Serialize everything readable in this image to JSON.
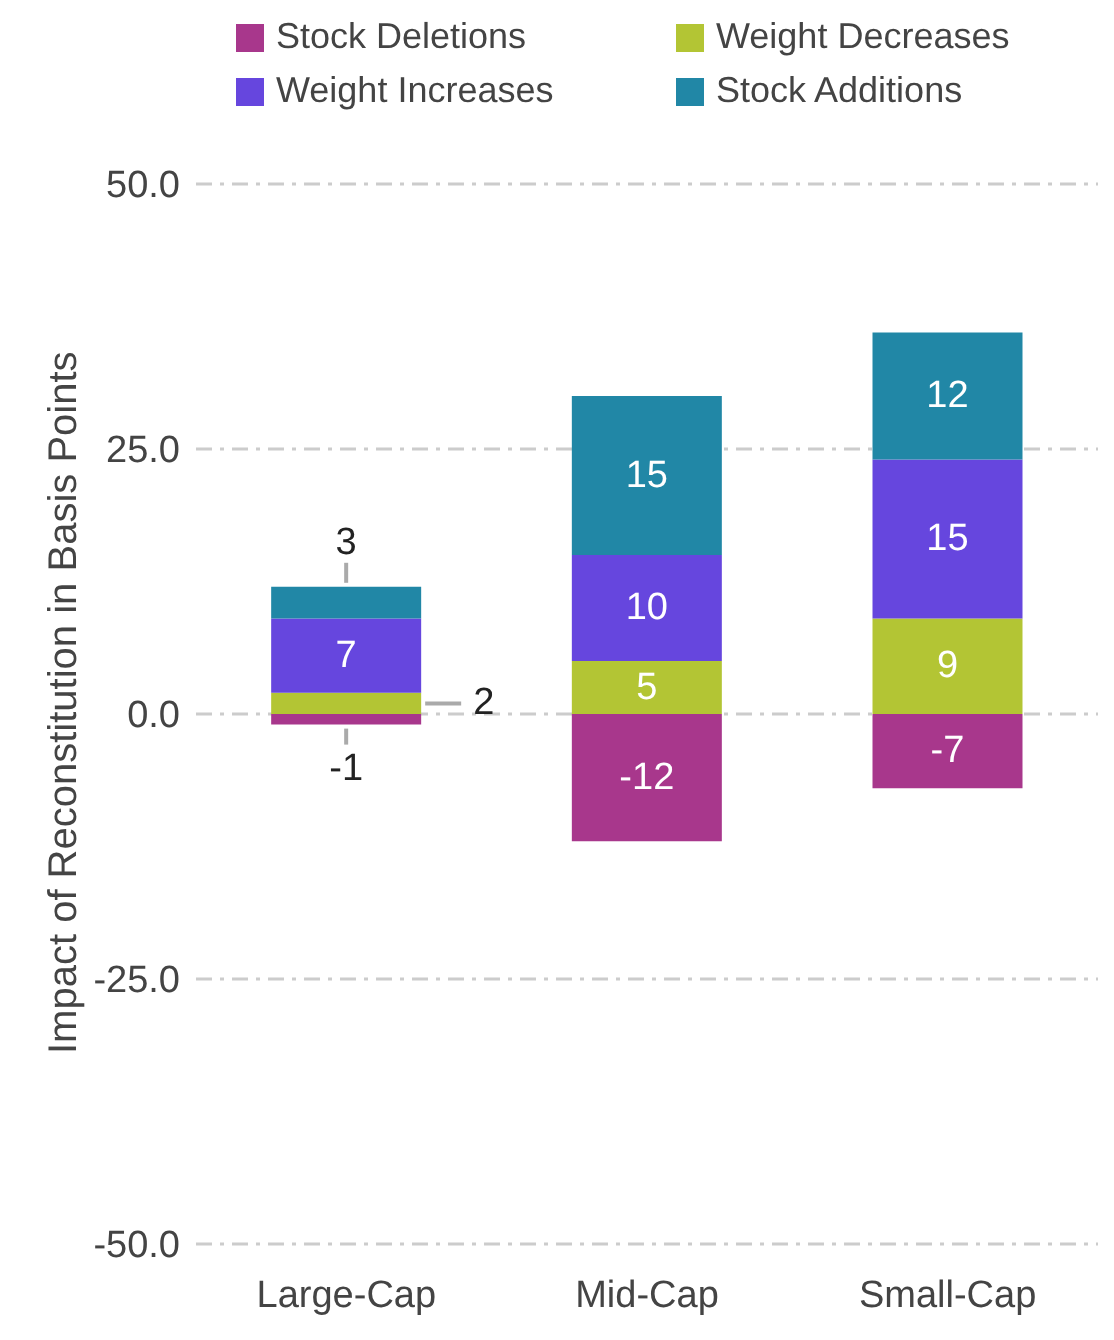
{
  "chart_data": {
    "type": "bar",
    "stacked": true,
    "ylabel": "Impact of Reconstitution in Basis Points",
    "categories": [
      "Large-Cap",
      "Mid-Cap",
      "Small-Cap"
    ],
    "series": [
      {
        "name": "Stock Deletions",
        "color": "#a8378c",
        "values": [
          -1,
          -12,
          -7
        ]
      },
      {
        "name": "Weight Decreases",
        "color": "#b3c534",
        "values": [
          2,
          5,
          9
        ]
      },
      {
        "name": "Weight Increases",
        "color": "#6646de",
        "values": [
          7,
          10,
          15
        ]
      },
      {
        "name": "Stock Additions",
        "color": "#2187a6",
        "values": [
          3,
          15,
          12
        ]
      }
    ],
    "ylim": [
      -50,
      50
    ],
    "yticks": [
      {
        "value": -50,
        "label": "-50.0"
      },
      {
        "value": -25,
        "label": "-25.0"
      },
      {
        "value": 0,
        "label": "0.0"
      },
      {
        "value": 25,
        "label": "25.0"
      },
      {
        "value": 50,
        "label": "50.0"
      }
    ],
    "grid": "y",
    "legend": "top",
    "data_labels": true
  }
}
